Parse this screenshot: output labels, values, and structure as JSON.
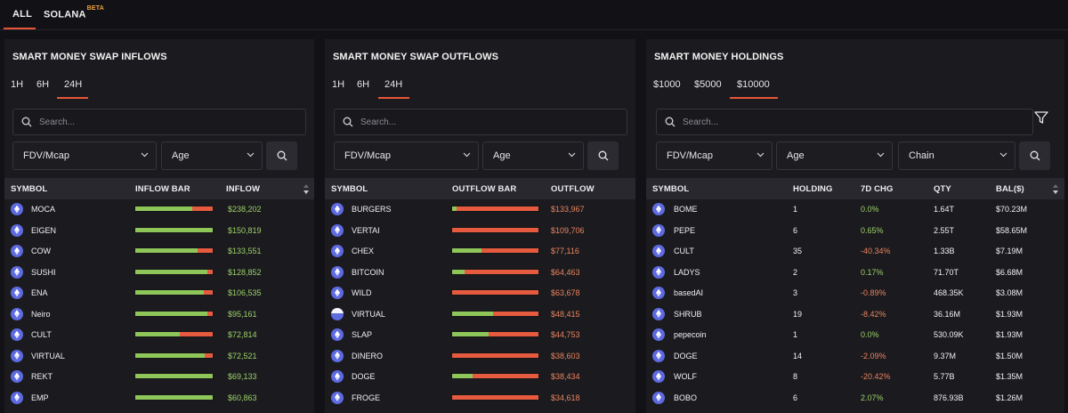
{
  "nav": {
    "all": "ALL",
    "solana": "SOLANA",
    "solana_badge": "BETA"
  },
  "colors": {
    "accent": "#e8553a",
    "green": "#9ccf69",
    "red": "#e9825e",
    "bar_green": "#8fc65a",
    "bar_red": "#e65b3f"
  },
  "inflows": {
    "title": "SMART MONEY SWAP INFLOWS",
    "tabs": [
      "1H",
      "6H",
      "24H"
    ],
    "active_tab": "24H",
    "search_placeholder": "Search...",
    "filters": [
      "FDV/Mcap",
      "Age"
    ],
    "headers": {
      "symbol": "SYMBOL",
      "bar": "INFLOW BAR",
      "value": "INFLOW"
    },
    "rows": [
      {
        "symbol": "MOCA",
        "value": "$238,202",
        "buy_share": 0.74,
        "icon": "ethereum-icon"
      },
      {
        "symbol": "EIGEN",
        "value": "$150,819",
        "buy_share": 1.0,
        "icon": "ethereum-icon"
      },
      {
        "symbol": "COW",
        "value": "$133,551",
        "buy_share": 0.8,
        "icon": "ethereum-icon"
      },
      {
        "symbol": "SUSHI",
        "value": "$128,852",
        "buy_share": 0.93,
        "icon": "ethereum-icon"
      },
      {
        "symbol": "ENA",
        "value": "$106,535",
        "buy_share": 0.88,
        "icon": "ethereum-icon"
      },
      {
        "symbol": "Neiro",
        "value": "$95,161",
        "buy_share": 0.93,
        "icon": "ethereum-icon"
      },
      {
        "symbol": "CULT",
        "value": "$72,814",
        "buy_share": 0.57,
        "icon": "ethereum-icon"
      },
      {
        "symbol": "VIRTUAL",
        "value": "$72,521",
        "buy_share": 0.9,
        "icon": "ethereum-icon"
      },
      {
        "symbol": "REKT",
        "value": "$69,133",
        "buy_share": 1.0,
        "icon": "ethereum-icon"
      },
      {
        "symbol": "EMP",
        "value": "$60,863",
        "buy_share": 1.0,
        "icon": "ethereum-icon"
      }
    ]
  },
  "outflows": {
    "title": "SMART MONEY SWAP OUTFLOWS",
    "tabs": [
      "1H",
      "6H",
      "24H"
    ],
    "active_tab": "24H",
    "search_placeholder": "Search...",
    "filters": [
      "FDV/Mcap",
      "Age"
    ],
    "headers": {
      "symbol": "SYMBOL",
      "bar": "OUTFLOW BAR",
      "value": "OUTFLOW"
    },
    "rows": [
      {
        "symbol": "BURGERS",
        "value": "$133,967",
        "buy_share": 0.05,
        "icon": "ethereum-icon"
      },
      {
        "symbol": "VERTAI",
        "value": "$109,706",
        "buy_share": 0.0,
        "icon": "ethereum-icon"
      },
      {
        "symbol": "CHEX",
        "value": "$77,116",
        "buy_share": 0.34,
        "icon": "ethereum-icon"
      },
      {
        "symbol": "BITCOIN",
        "value": "$64,463",
        "buy_share": 0.14,
        "icon": "ethereum-icon"
      },
      {
        "symbol": "WILD",
        "value": "$63,678",
        "buy_share": 0.0,
        "icon": "ethereum-icon"
      },
      {
        "symbol": "VIRTUAL",
        "value": "$48,415",
        "buy_share": 0.47,
        "icon": "virtual-token-icon"
      },
      {
        "symbol": "SLAP",
        "value": "$44,753",
        "buy_share": 0.42,
        "icon": "ethereum-icon"
      },
      {
        "symbol": "DINERO",
        "value": "$38,603",
        "buy_share": 0.0,
        "icon": "ethereum-icon"
      },
      {
        "symbol": "DOGE",
        "value": "$38,434",
        "buy_share": 0.24,
        "icon": "ethereum-icon"
      },
      {
        "symbol": "FROGE",
        "value": "$34,618",
        "buy_share": 0.0,
        "icon": "ethereum-icon"
      }
    ]
  },
  "holdings": {
    "title": "SMART MONEY HOLDINGS",
    "tabs": [
      "$1000",
      "$5000",
      "$10000"
    ],
    "active_tab": "$10000",
    "search_placeholder": "Search...",
    "filters": [
      "FDV/Mcap",
      "Age",
      "Chain"
    ],
    "headers": {
      "symbol": "SYMBOL",
      "holding": "HOLDING",
      "chg": "7D CHG",
      "qty": "QTY",
      "bal": "BAL($)"
    },
    "rows": [
      {
        "symbol": "BOME",
        "holding": "1",
        "chg": "0.0%",
        "chg_sign": "pos",
        "qty": "1.64T",
        "bal": "$70.23M"
      },
      {
        "symbol": "PEPE",
        "holding": "6",
        "chg": "0.65%",
        "chg_sign": "pos",
        "qty": "2.55T",
        "bal": "$58.65M"
      },
      {
        "symbol": "CULT",
        "holding": "35",
        "chg": "-40.34%",
        "chg_sign": "neg",
        "qty": "1.33B",
        "bal": "$7.19M"
      },
      {
        "symbol": "LADYS",
        "holding": "2",
        "chg": "0.17%",
        "chg_sign": "pos",
        "qty": "71.70T",
        "bal": "$6.68M"
      },
      {
        "symbol": "basedAI",
        "holding": "3",
        "chg": "-0.89%",
        "chg_sign": "neg",
        "qty": "468.35K",
        "bal": "$3.08M"
      },
      {
        "symbol": "SHRUB",
        "holding": "19",
        "chg": "-8.42%",
        "chg_sign": "neg",
        "qty": "36.16M",
        "bal": "$1.93M"
      },
      {
        "symbol": "pepecoin",
        "holding": "1",
        "chg": "0.0%",
        "chg_sign": "pos",
        "qty": "530.09K",
        "bal": "$1.93M"
      },
      {
        "symbol": "DOGE",
        "holding": "14",
        "chg": "-2.09%",
        "chg_sign": "neg",
        "qty": "9.37M",
        "bal": "$1.50M"
      },
      {
        "symbol": "WOLF",
        "holding": "8",
        "chg": "-20.42%",
        "chg_sign": "neg",
        "qty": "5.77B",
        "bal": "$1.35M"
      },
      {
        "symbol": "BOBO",
        "holding": "6",
        "chg": "2.07%",
        "chg_sign": "pos",
        "qty": "876.93B",
        "bal": "$1.26M"
      }
    ]
  }
}
